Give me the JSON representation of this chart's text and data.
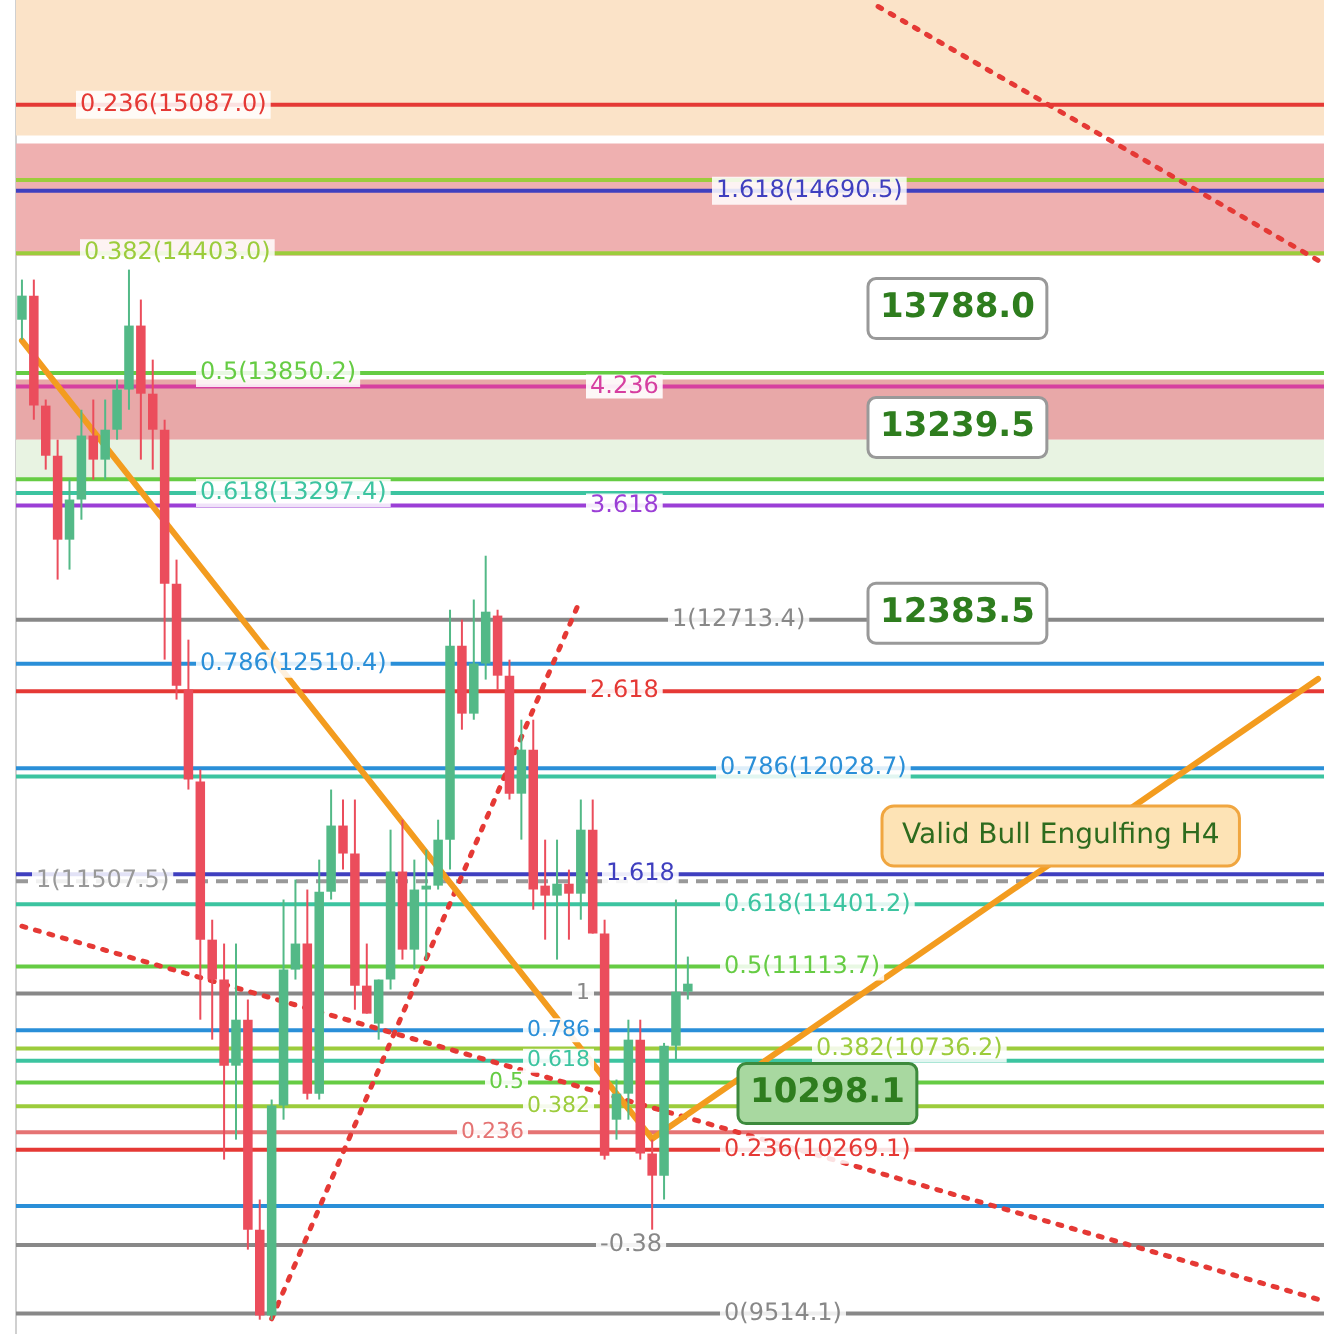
{
  "chart_data": {
    "type": "candlestick",
    "categories": [
      null,
      null,
      null,
      null,
      null,
      null,
      null,
      null,
      null,
      null,
      null,
      null,
      null,
      null,
      null,
      null,
      null,
      null,
      null,
      null,
      null,
      null,
      null,
      null,
      null,
      null,
      null,
      null,
      null,
      null,
      null,
      null,
      null,
      null,
      null,
      null,
      null,
      null,
      null,
      null,
      null,
      null,
      null,
      null,
      null,
      null,
      null,
      null,
      null,
      null,
      null,
      null,
      null,
      null,
      null,
      null,
      null,
      null,
      null,
      null,
      null,
      null,
      null,
      null,
      null,
      null,
      null,
      null,
      null,
      null,
      null,
      null,
      null,
      null,
      null,
      null,
      null,
      null,
      null,
      null,
      null,
      null,
      null,
      null,
      null,
      null,
      null,
      null,
      null,
      null,
      null,
      null,
      null,
      null,
      null,
      null,
      null,
      null,
      null,
      null,
      null,
      null,
      null,
      null,
      null,
      null,
      null,
      null,
      null,
      null
    ],
    "ohlc": [
      [
        14096,
        14281,
        14004,
        14207
      ],
      [
        14207,
        14281,
        13635,
        13700
      ],
      [
        13700,
        13728,
        13405,
        13469
      ],
      [
        13469,
        13543,
        12898,
        13082
      ],
      [
        13082,
        13359,
        12944,
        13267
      ],
      [
        13267,
        13681,
        13174,
        13562
      ],
      [
        13562,
        13728,
        13359,
        13451
      ],
      [
        13451,
        13728,
        13359,
        13589
      ],
      [
        13589,
        13820,
        13543,
        13774
      ],
      [
        13774,
        14327,
        13681,
        14069
      ],
      [
        14069,
        14189,
        13451,
        13755
      ],
      [
        13755,
        13912,
        13405,
        13589
      ],
      [
        13589,
        13635,
        12529,
        12879
      ],
      [
        12879,
        12990,
        12345,
        12409
      ],
      [
        12391,
        12621,
        11930,
        11976
      ],
      [
        11967,
        12022,
        10869,
        11238
      ],
      [
        11238,
        11330,
        10777,
        11054
      ],
      [
        11054,
        11220,
        10224,
        10657
      ],
      [
        10657,
        11220,
        10316,
        10869
      ],
      [
        10869,
        10962,
        9809,
        9901
      ],
      [
        9901,
        10040,
        9486,
        9505
      ],
      [
        9505,
        10501,
        9486,
        10473
      ],
      [
        10473,
        11423,
        10408,
        11100
      ],
      [
        11100,
        11515,
        11054,
        11220
      ],
      [
        11220,
        11469,
        10501,
        10528
      ],
      [
        10528,
        11607,
        10501,
        11459
      ],
      [
        11459,
        11930,
        11423,
        11764
      ],
      [
        11764,
        11884,
        11561,
        11635
      ],
      [
        11635,
        11884,
        10915,
        11026
      ],
      [
        11026,
        11220,
        10897,
        10897
      ],
      [
        10851,
        11054,
        10777,
        11054
      ],
      [
        11054,
        11745,
        11008,
        11552
      ],
      [
        11552,
        11791,
        11146,
        11192
      ],
      [
        11192,
        11607,
        11100,
        11469
      ],
      [
        11469,
        11653,
        11146,
        11487
      ],
      [
        11487,
        11791,
        11469,
        11699
      ],
      [
        11699,
        12759,
        11561,
        12593
      ],
      [
        12593,
        12713,
        12206,
        12280
      ],
      [
        12280,
        12806,
        12252,
        12511
      ],
      [
        12511,
        13008,
        12437,
        12750
      ],
      [
        12732,
        12759,
        12391,
        12455
      ],
      [
        12455,
        12529,
        11884,
        11911
      ],
      [
        11911,
        12252,
        11699,
        12114
      ],
      [
        12114,
        12252,
        11376,
        11469
      ],
      [
        11487,
        11699,
        11238,
        11441
      ],
      [
        11441,
        11699,
        11146,
        11496
      ],
      [
        11496,
        11561,
        11238,
        11450
      ],
      [
        11450,
        11884,
        11330,
        11745
      ],
      [
        11745,
        11884,
        11266,
        11266
      ],
      [
        11266,
        11330,
        10224,
        10242
      ],
      [
        10408,
        10593,
        10316,
        10528
      ],
      [
        10528,
        10869,
        10408,
        10777
      ],
      [
        10777,
        10869,
        10224,
        10252
      ],
      [
        10252,
        10316,
        9901,
        10150
      ],
      [
        10150,
        10762,
        10040,
        10749
      ],
      [
        10749,
        11423,
        10685,
        10998
      ],
      [
        10998,
        11160,
        10962,
        11035
      ],
      null,
      null,
      null,
      null,
      null,
      null,
      null,
      null,
      null,
      null,
      null,
      null,
      null,
      null,
      null,
      null,
      null,
      null,
      null,
      null,
      null,
      null,
      null,
      null,
      null,
      null,
      null,
      null,
      null,
      null,
      null,
      null,
      null,
      null,
      null,
      null,
      null,
      null,
      null,
      null,
      null,
      null,
      null,
      null,
      null,
      null,
      null,
      null,
      null,
      null,
      null,
      null,
      null
    ],
    "series": [
      {
        "type": "line",
        "color": "#f39c1f",
        "line_style": "solid",
        "values": [
          14000,
          null,
          null,
          null,
          null,
          null,
          null,
          null,
          null,
          null,
          null,
          null,
          null,
          null,
          null,
          null,
          null,
          null,
          null,
          null,
          null,
          null,
          null,
          null,
          null,
          null,
          null,
          null,
          null,
          null,
          null,
          null,
          null,
          null,
          null,
          null,
          null,
          null,
          null,
          null,
          null,
          null,
          null,
          null,
          null,
          null,
          null,
          null,
          null,
          null,
          null,
          null,
          null,
          10320,
          null,
          null,
          null,
          null,
          null,
          null,
          null,
          null,
          null,
          null,
          null,
          null,
          null,
          null,
          null,
          null,
          null,
          null,
          null,
          null,
          null,
          null,
          null,
          null,
          null,
          null,
          null,
          null,
          null,
          null,
          null,
          null,
          null,
          null,
          null,
          null,
          null,
          null,
          null,
          null,
          null,
          null,
          null,
          null,
          null,
          null,
          null,
          null,
          null,
          null,
          null,
          null,
          null,
          null,
          null,
          12440
        ]
      },
      {
        "type": "line",
        "color": "#e53935",
        "line_style": "dotted",
        "values": [
          11300,
          null,
          null,
          null,
          null,
          null,
          null,
          null,
          null,
          null,
          null,
          null,
          null,
          null,
          null,
          null,
          null,
          null,
          null,
          null,
          null,
          null,
          null,
          null,
          null,
          null,
          null,
          null,
          null,
          null,
          null,
          null,
          null,
          null,
          null,
          null,
          null,
          null,
          null,
          null,
          null,
          null,
          null,
          null,
          null,
          null,
          null,
          null,
          null,
          null,
          null,
          null,
          null,
          null,
          null,
          null,
          null,
          null,
          null,
          null,
          null,
          null,
          null,
          null,
          null,
          null,
          null,
          null,
          null,
          null,
          null,
          null,
          null,
          null,
          null,
          null,
          null,
          null,
          null,
          null,
          null,
          null,
          null,
          null,
          null,
          null,
          null,
          null,
          null,
          null,
          null,
          null,
          null,
          null,
          null,
          null,
          null,
          null,
          null,
          null,
          null,
          null,
          null,
          null,
          null,
          null,
          null,
          null,
          null,
          9580
        ]
      },
      {
        "type": "line",
        "color": "#e53935",
        "line_style": "dotted",
        "values": [
          null,
          null,
          null,
          null,
          null,
          null,
          null,
          null,
          null,
          null,
          null,
          null,
          null,
          null,
          null,
          null,
          null,
          null,
          null,
          null,
          null,
          9490,
          null,
          null,
          null,
          null,
          null,
          null,
          null,
          null,
          null,
          null,
          null,
          null,
          null,
          null,
          null,
          null,
          null,
          null,
          null,
          null,
          null,
          null,
          null,
          null,
          null,
          12810,
          null,
          null,
          null,
          null,
          null,
          null,
          null,
          null,
          null,
          null,
          null,
          null,
          null,
          null,
          null,
          null,
          null,
          null,
          null,
          null,
          null,
          null,
          null,
          null,
          null,
          null,
          null,
          null,
          null,
          null,
          null,
          null,
          null,
          null,
          null,
          null,
          null,
          null,
          null,
          null,
          null,
          null,
          null,
          null,
          null,
          null,
          null,
          null,
          null,
          null,
          null,
          null,
          null,
          null,
          null,
          null,
          null,
          null,
          null,
          null,
          null,
          null
        ]
      },
      {
        "type": "line",
        "color": "#e53935",
        "line_style": "dotted",
        "values": [
          null,
          null,
          null,
          null,
          null,
          null,
          null,
          null,
          null,
          null,
          null,
          null,
          null,
          null,
          null,
          null,
          null,
          null,
          null,
          null,
          null,
          null,
          null,
          null,
          null,
          null,
          null,
          null,
          null,
          null,
          null,
          null,
          null,
          null,
          null,
          null,
          null,
          null,
          null,
          null,
          null,
          null,
          null,
          null,
          null,
          null,
          null,
          null,
          null,
          null,
          null,
          null,
          null,
          null,
          null,
          null,
          null,
          null,
          null,
          null,
          null,
          null,
          null,
          null,
          null,
          null,
          null,
          null,
          null,
          null,
          null,
          null,
          15540,
          null,
          null,
          null,
          null,
          null,
          null,
          null,
          null,
          null,
          null,
          null,
          null,
          null,
          null,
          null,
          null,
          null,
          null,
          null,
          null,
          null,
          null,
          null,
          null,
          null,
          null,
          null,
          null,
          null,
          null,
          null,
          null,
          null,
          null,
          null,
          null,
          14370
        ]
      }
    ],
    "ylim": [
      9420,
      15570
    ],
    "bands": [
      {
        "axis": "y",
        "from": 14945,
        "to": 15570,
        "color": "#fbe3c8"
      },
      {
        "axis": "y",
        "from": 14391,
        "to": 14908,
        "color": "#efb0b0"
      },
      {
        "axis": "y",
        "from": 13543,
        "to": 13820,
        "color": "#e8a8a8"
      },
      {
        "axis": "y",
        "from": 13359,
        "to": 13543,
        "color": "#e8f3e2"
      }
    ],
    "ref_lines": [
      {
        "axis": "y",
        "value": 15087.0,
        "label": "0.236(15087.0)",
        "color": "#e53935"
      },
      {
        "axis": "y",
        "value": 14740,
        "label": null,
        "color": "#9ccc3c"
      },
      {
        "axis": "y",
        "value": 14690.5,
        "label": "1.618(14690.5)",
        "color": "#3f3fbf"
      },
      {
        "axis": "y",
        "value": 14403.0,
        "label": "0.382(14403.0)",
        "color": "#9ccc3c"
      },
      {
        "axis": "y",
        "value": 13850.2,
        "label": "0.5(13850.2)",
        "color": "#66cc44"
      },
      {
        "axis": "y",
        "value": 13788.0,
        "label": null,
        "color": "#d63fa0"
      },
      {
        "axis": "y",
        "value": 13360,
        "label": null,
        "color": "#66cc44"
      },
      {
        "axis": "y",
        "value": 13297.4,
        "label": "0.618(13297.4)",
        "color": "#3cc4a0"
      },
      {
        "axis": "y",
        "value": 13239.5,
        "label": null,
        "color": "#9b3fd6"
      },
      {
        "axis": "y",
        "value": 12713.4,
        "label": "1(12713.4)",
        "color": "#888888"
      },
      {
        "axis": "y",
        "value": 12510.4,
        "label": "0.786(12510.4)",
        "color": "#2a8fd8"
      },
      {
        "axis": "y",
        "value": 12383.5,
        "label": null,
        "color": "#e53935"
      },
      {
        "axis": "y",
        "value": 12028.7,
        "label": "0.786(12028.7)",
        "color": "#2a8fd8"
      },
      {
        "axis": "y",
        "value": 11990,
        "label": null,
        "color": "#3cc4a0"
      },
      {
        "axis": "y",
        "value": 11540,
        "label": null,
        "color": "#3f3fbf"
      },
      {
        "axis": "y",
        "value": 11507.5,
        "label": "1(11507.5)",
        "color": "#999999",
        "line_style": "dashed"
      },
      {
        "axis": "y",
        "value": 11401.2,
        "label": "0.618(11401.2)",
        "color": "#3cc4a0"
      },
      {
        "axis": "y",
        "value": 11113.7,
        "label": "0.5(11113.7)",
        "color": "#66cc44"
      },
      {
        "axis": "y",
        "value": 10990,
        "label": null,
        "color": "#888888"
      },
      {
        "axis": "y",
        "value": 10820,
        "label": null,
        "color": "#2a8fd8"
      },
      {
        "axis": "y",
        "value": 10736.2,
        "label": "0.382(10736.2)",
        "color": "#9ccc3c"
      },
      {
        "axis": "y",
        "value": 10680,
        "label": null,
        "color": "#3cc4a0"
      },
      {
        "axis": "y",
        "value": 10580,
        "label": null,
        "color": "#66cc44"
      },
      {
        "axis": "y",
        "value": 10470,
        "label": null,
        "color": "#9ccc3c"
      },
      {
        "axis": "y",
        "value": 10350,
        "label": null,
        "color": "#e57373"
      },
      {
        "axis": "y",
        "value": 10269.1,
        "label": "0.236(10269.1)",
        "color": "#e53935"
      },
      {
        "axis": "y",
        "value": 10010,
        "label": null,
        "color": "#2a8fd8"
      },
      {
        "axis": "y",
        "value": 9830,
        "label": null,
        "color": "#888888"
      },
      {
        "axis": "y",
        "value": 9514.1,
        "label": "0(9514.1)",
        "color": "#888888"
      }
    ],
    "annotations": [
      {
        "text": "13788.0",
        "y": 13788.0
      },
      {
        "text": "13239.5",
        "y": 13239.5
      },
      {
        "text": "12383.5",
        "y": 12383.5
      },
      {
        "text": "10298.1",
        "y": 10298.1
      },
      "Valid Bull Engulfing H4",
      {
        "text": "4.236",
        "y": 13788.0
      },
      {
        "text": "3.618",
        "y": 13239.5
      },
      {
        "text": "2.618",
        "y": 12383.5
      },
      {
        "text": "1.618",
        "y": 11540
      },
      {
        "text": "1",
        "y": 10990
      },
      {
        "text": "0.786",
        "y": 10820
      },
      {
        "text": "0.618",
        "y": 10680
      },
      {
        "text": "0.5",
        "y": 10580
      },
      {
        "text": "0.382",
        "y": 10470
      },
      {
        "text": "0.236",
        "y": 10350
      },
      {
        "text": "-0.38",
        "y": 9830
      }
    ],
    "tick_labels": false,
    "grid": false
  }
}
